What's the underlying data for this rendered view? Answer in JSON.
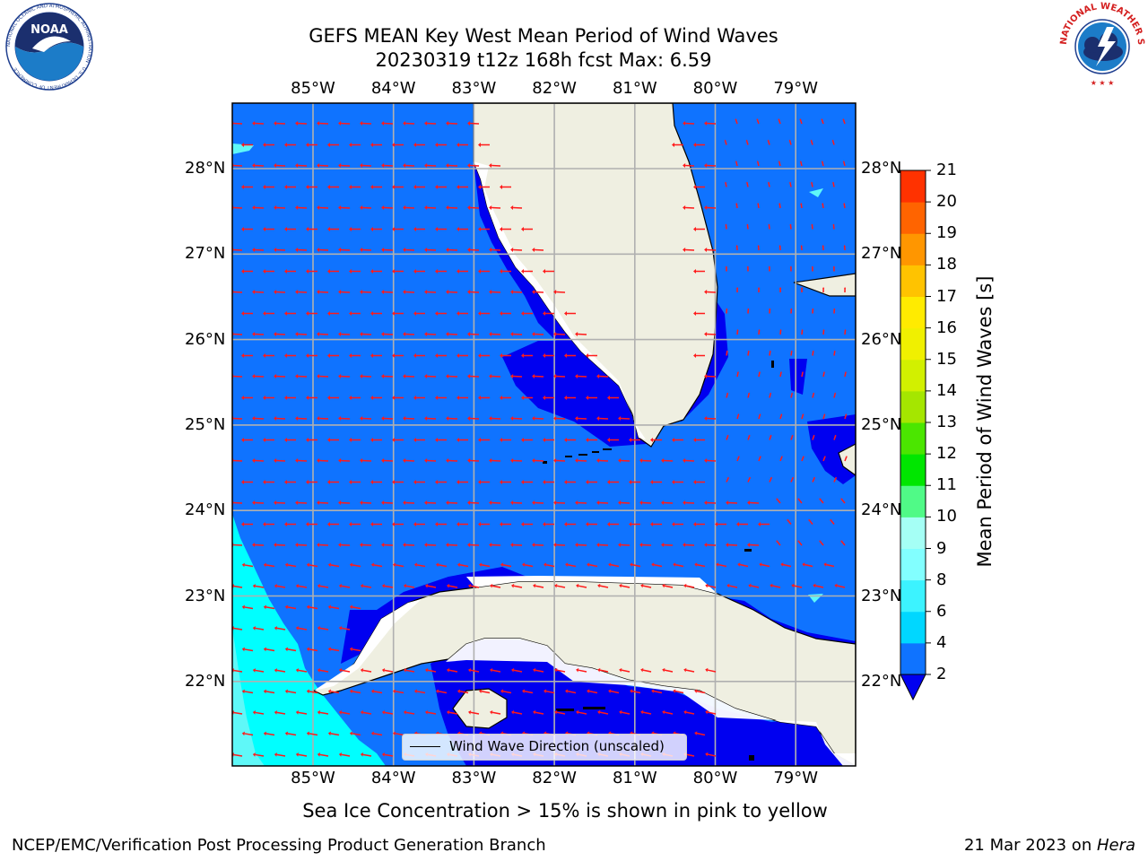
{
  "title_line1": "GEFS MEAN Key West Mean Period of Wind Waves",
  "title_line2": "20230319 t12z 168h fcst   Max: 6.59",
  "subtitle": "Sea Ice Concentration > 15% is shown in pink to yellow",
  "footer_left": "NCEP/EMC/Verification Post Processing Product Generation Branch",
  "footer_date": "21 Mar 2023 on ",
  "footer_machine": "Hera",
  "legend_label": "Wind Wave Direction (unscaled)",
  "colorbar": {
    "label": "Mean Period of Wind Waves [s]",
    "ticks": [
      "2",
      "4",
      "6",
      "8",
      "9",
      "10",
      "11",
      "12",
      "13",
      "14",
      "15",
      "16",
      "17",
      "18",
      "19",
      "20",
      "21"
    ],
    "colors": [
      "#0f73ff",
      "#00d7ff",
      "#3cf3ff",
      "#82ffff",
      "#a5fff5",
      "#50fa87",
      "#00e600",
      "#4be600",
      "#a5e600",
      "#d2f000",
      "#f0f000",
      "#ffeb00",
      "#ffc300",
      "#ff9600",
      "#ff6400",
      "#ff3200"
    ],
    "extend_color": "#0000f0"
  },
  "map": {
    "lon_labels": [
      "85°W",
      "84°W",
      "83°W",
      "82°W",
      "81°W",
      "80°W",
      "79°W"
    ],
    "lat_labels": [
      "28°N",
      "27°N",
      "26°N",
      "25°N",
      "24°N",
      "23°N",
      "22°N"
    ],
    "colors": {
      "ocean": "#0f73ff",
      "shallow": "#0000f0",
      "land": "#efefe1",
      "cyan": "#00ffff",
      "light_cyan": "#5ff8f8",
      "arrow": "#ff1a1a",
      "grid": "#b0b0b0"
    }
  },
  "logos": {
    "noaa_text": "NOAA",
    "noaa_ring": "NATIONAL OCEANIC AND ATMOSPHERIC ADMINISTRATION · U.S. DEPARTMENT OF COMMERCE",
    "nws_text": "NATIONAL WEATHER SERVICE"
  }
}
